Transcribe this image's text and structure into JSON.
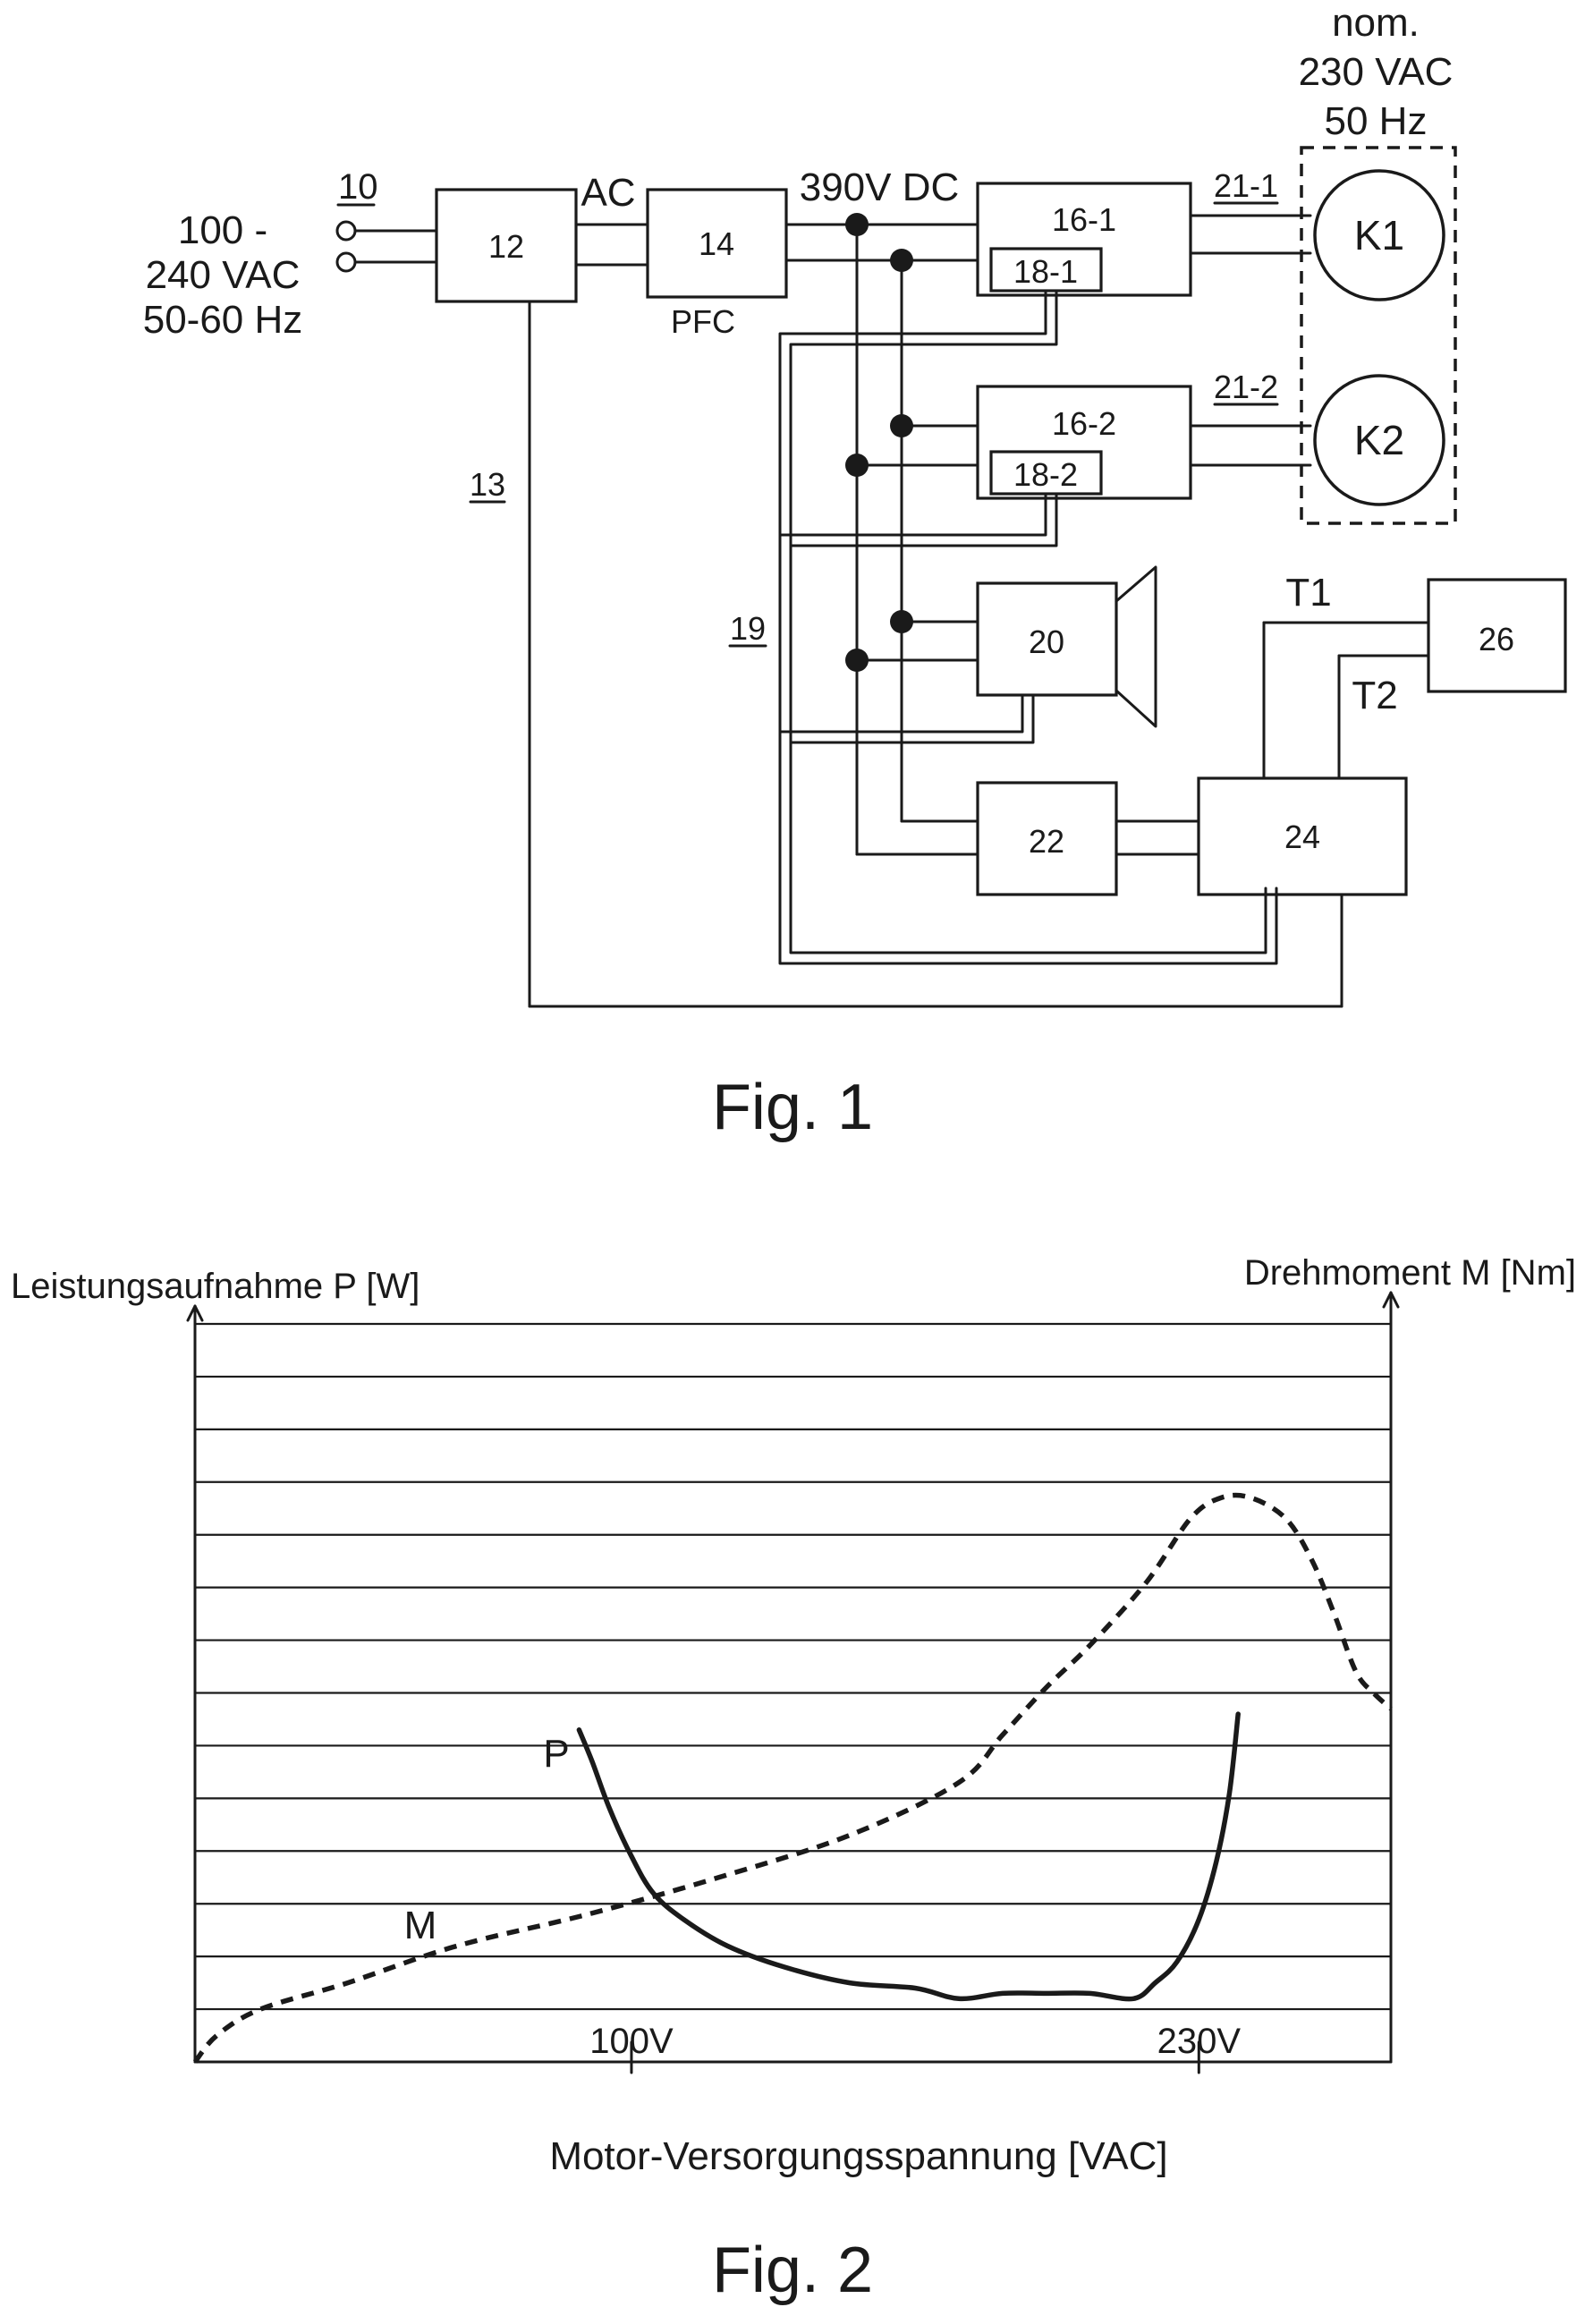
{
  "fig1": {
    "caption": "Fig. 1",
    "input": {
      "ref": "10",
      "line1": "100 -",
      "line2": "240 VAC",
      "line3": "50-60 Hz"
    },
    "nominal": {
      "line1": "nom.",
      "line2": "230 VAC",
      "line3": "50 Hz"
    },
    "labels": {
      "ac": "AC",
      "dc": "390V DC",
      "pfc": "PFC",
      "line13": "13",
      "line19": "19",
      "line21_1": "21-1",
      "line21_2": "21-2",
      "t1": "T1",
      "t2": "T2"
    },
    "blocks": {
      "b12": "12",
      "b14": "14",
      "b16_1": "16-1",
      "b18_1": "18-1",
      "b16_2": "16-2",
      "b18_2": "18-2",
      "b20": "20",
      "b22": "22",
      "b24": "24",
      "b26": "26",
      "k1": "K1",
      "k2": "K2"
    }
  },
  "chart_data": {
    "type": "line",
    "caption": "Fig. 2",
    "ylabel_left": "Leistungsaufnahme P [W]",
    "ylabel_right": "Drehmoment M [Nm]",
    "xlabel": "Motor-Versorgungsspannung [VAC]",
    "x_ticks": [
      {
        "value": 100,
        "label": "100V"
      },
      {
        "value": 230,
        "label": "230V"
      }
    ],
    "xlim": [
      0,
      274
    ],
    "ylim": [
      0,
      14
    ],
    "grid": "horizontal",
    "series": [
      {
        "name": "P",
        "style": "solid",
        "x": [
          88,
          91,
          95,
          100,
          105,
          112,
          122,
          135,
          150,
          165,
          175,
          185,
          195,
          205,
          215,
          220,
          225,
          230,
          234,
          237,
          239
        ],
        "y": [
          6.3,
          5.7,
          4.8,
          3.9,
          3.2,
          2.7,
          2.2,
          1.8,
          1.5,
          1.4,
          1.2,
          1.3,
          1.3,
          1.3,
          1.2,
          1.5,
          1.9,
          2.7,
          3.8,
          5.1,
          6.6
        ]
      },
      {
        "name": "M",
        "style": "dashed",
        "x": [
          0,
          5,
          15,
          35,
          60,
          90,
          120,
          150,
          175,
          185,
          195,
          205,
          218,
          228,
          235,
          242,
          250,
          256,
          261,
          266,
          270,
          274
        ],
        "y": [
          0,
          0.5,
          1.0,
          1.5,
          2.2,
          2.8,
          3.5,
          4.3,
          5.3,
          6.2,
          7.1,
          7.9,
          9.1,
          10.3,
          10.7,
          10.7,
          10.3,
          9.5,
          8.5,
          7.4,
          7.0,
          6.7
        ]
      }
    ]
  }
}
